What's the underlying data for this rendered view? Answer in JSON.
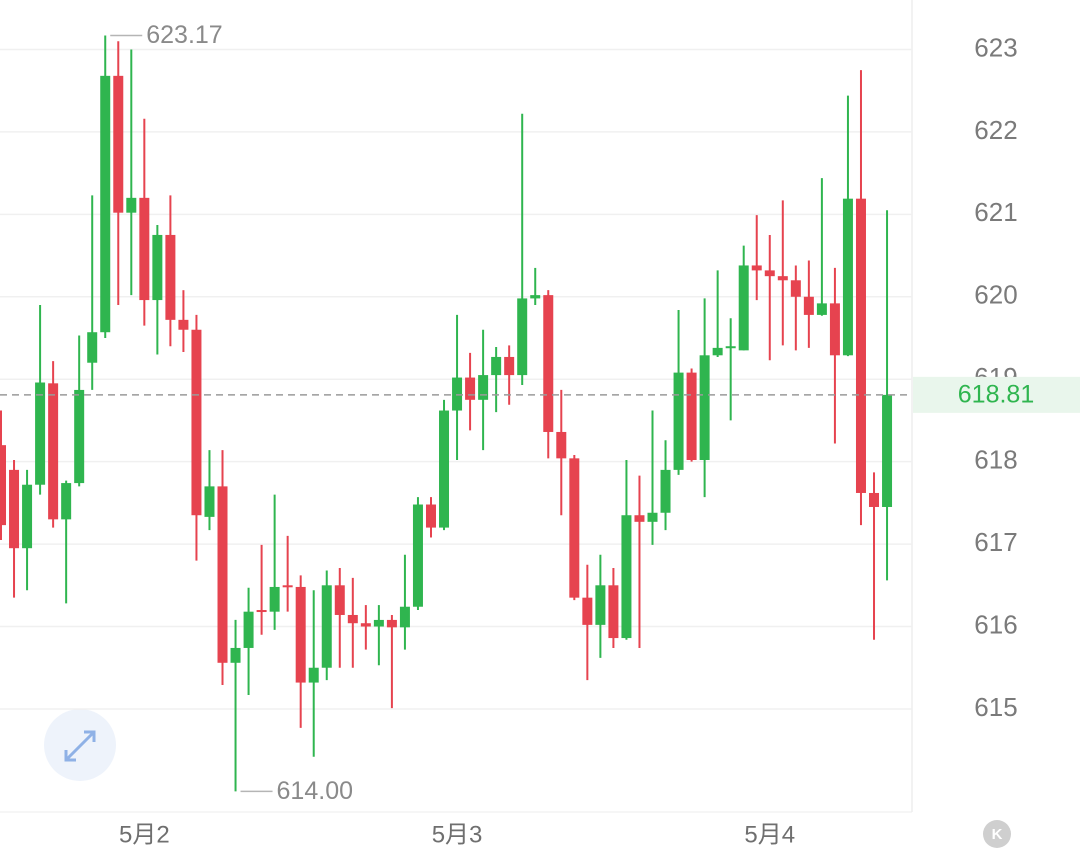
{
  "chart_data": {
    "type": "candlestick",
    "categories": [
      null,
      null,
      null,
      null,
      null,
      null,
      null,
      null,
      null,
      null,
      null,
      "5月2",
      null,
      null,
      null,
      null,
      null,
      null,
      null,
      null,
      null,
      null,
      null,
      null,
      null,
      null,
      null,
      null,
      null,
      null,
      null,
      null,
      null,
      null,
      null,
      "5月3",
      null,
      null,
      null,
      null,
      null,
      null,
      null,
      null,
      null,
      null,
      null,
      null,
      null,
      null,
      null,
      null,
      null,
      null,
      null,
      null,
      null,
      null,
      null,
      "5月4",
      null,
      null,
      null,
      null,
      null,
      null,
      null,
      null,
      null
    ],
    "open": [
      618.2,
      617.9,
      616.95,
      617.72,
      618.95,
      617.3,
      617.74,
      619.2,
      619.57,
      622.68,
      621.02,
      621.2,
      619.96,
      620.75,
      619.72,
      619.6,
      617.33,
      617.7,
      615.56,
      615.74,
      616.2,
      616.18,
      616.5,
      616.48,
      615.32,
      615.5,
      616.5,
      616.14,
      616.04,
      616.0,
      616.08,
      615.99,
      616.24,
      617.48,
      617.2,
      618.62,
      619.02,
      618.75,
      619.05,
      619.27,
      619.05,
      619.98,
      620.02,
      618.36,
      618.04,
      616.35,
      616.02,
      616.5,
      615.86,
      617.35,
      617.27,
      617.38,
      617.9,
      619.08,
      618.02,
      619.29,
      619.38,
      619.35,
      620.38,
      620.32,
      620.25,
      620.2,
      620.0,
      619.78,
      619.92,
      619.29,
      621.19,
      617.62,
      617.45
    ],
    "high": [
      618.62,
      618.02,
      617.9,
      619.9,
      619.22,
      617.77,
      619.53,
      621.23,
      623.17,
      623.1,
      623.0,
      622.16,
      620.87,
      621.23,
      620.08,
      619.78,
      618.14,
      618.14,
      616.08,
      616.47,
      616.99,
      617.6,
      617.1,
      616.62,
      616.44,
      616.68,
      616.71,
      616.59,
      616.26,
      616.26,
      616.14,
      616.87,
      617.57,
      617.57,
      618.75,
      619.78,
      619.32,
      619.6,
      619.39,
      619.41,
      622.22,
      620.35,
      620.08,
      618.87,
      618.08,
      616.75,
      616.87,
      616.71,
      618.02,
      617.83,
      618.62,
      618.26,
      619.84,
      619.13,
      619.98,
      620.32,
      619.74,
      620.62,
      620.99,
      620.75,
      621.17,
      620.38,
      620.44,
      621.44,
      620.35,
      622.44,
      622.75,
      617.87,
      621.05
    ],
    "low": [
      617.05,
      616.35,
      616.44,
      617.6,
      617.2,
      616.28,
      617.7,
      618.87,
      619.5,
      619.9,
      620.02,
      619.65,
      619.3,
      619.4,
      619.33,
      616.8,
      617.17,
      615.29,
      614.0,
      615.17,
      615.9,
      615.96,
      616.18,
      614.77,
      614.42,
      615.35,
      615.5,
      615.5,
      615.72,
      615.53,
      615.01,
      615.72,
      616.2,
      617.08,
      617.17,
      618.02,
      618.38,
      618.14,
      618.6,
      618.69,
      618.93,
      619.9,
      618.04,
      617.35,
      616.32,
      615.35,
      615.62,
      615.74,
      615.84,
      615.74,
      616.99,
      617.17,
      617.84,
      618.0,
      617.57,
      619.27,
      618.5,
      619.35,
      619.96,
      619.23,
      619.41,
      619.35,
      619.38,
      619.77,
      618.22,
      619.28,
      617.23,
      615.84,
      616.56
    ],
    "close": [
      617.23,
      616.95,
      617.72,
      618.96,
      617.3,
      617.74,
      618.87,
      619.57,
      622.68,
      621.02,
      621.2,
      619.96,
      620.75,
      619.72,
      619.6,
      617.35,
      617.7,
      615.56,
      615.74,
      616.18,
      616.18,
      616.48,
      616.48,
      615.32,
      615.5,
      616.5,
      616.14,
      616.04,
      616.0,
      616.08,
      615.99,
      616.24,
      617.48,
      617.2,
      618.62,
      619.02,
      618.75,
      619.05,
      619.27,
      619.05,
      619.98,
      620.02,
      618.36,
      618.04,
      616.35,
      616.02,
      616.5,
      615.86,
      617.35,
      617.27,
      617.38,
      617.9,
      619.08,
      618.02,
      619.29,
      619.38,
      619.4,
      620.38,
      620.32,
      620.25,
      620.2,
      620.0,
      619.78,
      619.92,
      619.29,
      621.19,
      617.62,
      617.45,
      618.81
    ],
    "up_color": "#2fb54f",
    "down_color": "#e6434f",
    "ylim": [
      613.75,
      623.6
    ],
    "yticks": [
      615,
      616,
      617,
      618,
      619,
      620,
      621,
      622,
      623
    ],
    "grid": true,
    "high_label": {
      "value": 623.17,
      "label": "623.17"
    },
    "low_label": {
      "value": 614,
      "label": "614.00"
    },
    "last_price": {
      "value": 618.81,
      "label": "618.81"
    },
    "kline_button": "K"
  }
}
